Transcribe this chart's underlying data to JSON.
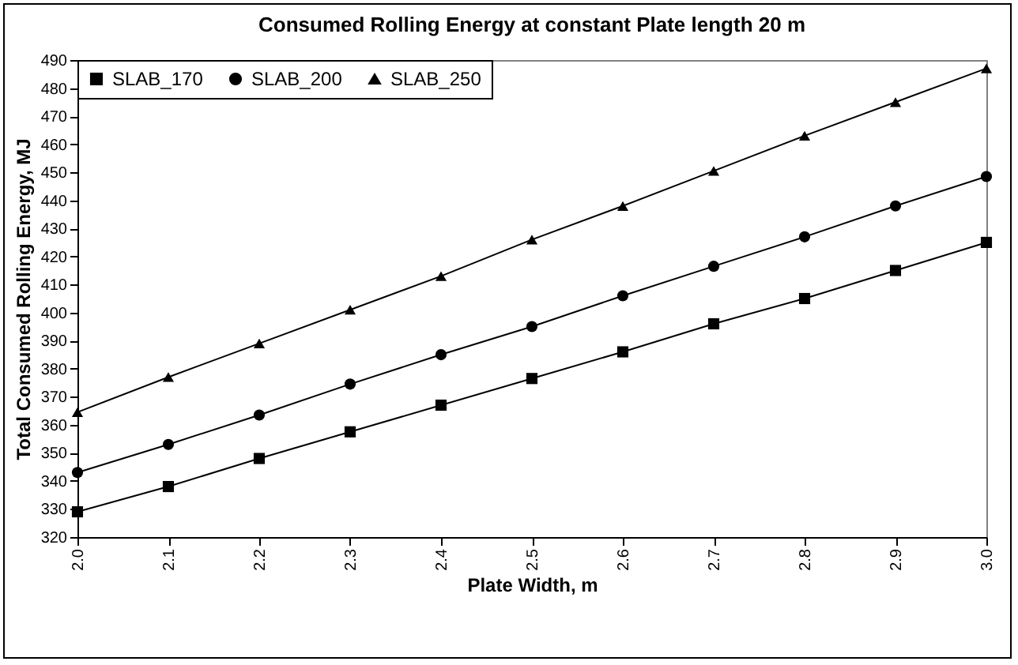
{
  "chart_data": {
    "type": "line",
    "title": "Consumed Rolling Energy  at constant Plate length 20 m",
    "xlabel": "Plate Width, m",
    "ylabel": "Total Consumed Rolling Energy, MJ",
    "x": [
      2.0,
      2.1,
      2.2,
      2.3,
      2.4,
      2.5,
      2.6,
      2.7,
      2.8,
      2.9,
      3.0
    ],
    "series": [
      {
        "name": "SLAB_170",
        "color": "#000000",
        "marker": "square",
        "values": [
          329,
          338,
          348,
          357.5,
          367,
          376.5,
          386,
          396,
          405,
          415,
          425
        ]
      },
      {
        "name": "SLAB_200",
        "color": "#000000",
        "marker": "circle",
        "values": [
          343,
          353,
          363.5,
          374.5,
          385,
          395,
          406,
          416.5,
          427,
          438,
          448.5
        ]
      },
      {
        "name": "SLAB_250",
        "color": "#000000",
        "marker": "triangle",
        "values": [
          364.5,
          377,
          389,
          401,
          413,
          426,
          438,
          450.5,
          463,
          475,
          487
        ]
      }
    ],
    "xlim": [
      2.0,
      3.0
    ],
    "xticks": [
      {
        "value": 2.0,
        "label": "2.0"
      },
      {
        "value": 2.1,
        "label": "2.1"
      },
      {
        "value": 2.2,
        "label": "2.2"
      },
      {
        "value": 2.3,
        "label": "2.3"
      },
      {
        "value": 2.4,
        "label": "2.4"
      },
      {
        "value": 2.5,
        "label": "2.5"
      },
      {
        "value": 2.6,
        "label": "2.6"
      },
      {
        "value": 2.7,
        "label": "2.7"
      },
      {
        "value": 2.8,
        "label": "2.8"
      },
      {
        "value": 2.9,
        "label": "2.9"
      },
      {
        "value": 3.0,
        "label": "3.0"
      }
    ],
    "ylim": [
      320,
      490
    ],
    "yticks": [
      320,
      330,
      340,
      350,
      360,
      370,
      380,
      390,
      400,
      410,
      420,
      430,
      440,
      450,
      460,
      470,
      480,
      490
    ],
    "grid": false,
    "legend": "top left",
    "line_style": "solid"
  }
}
